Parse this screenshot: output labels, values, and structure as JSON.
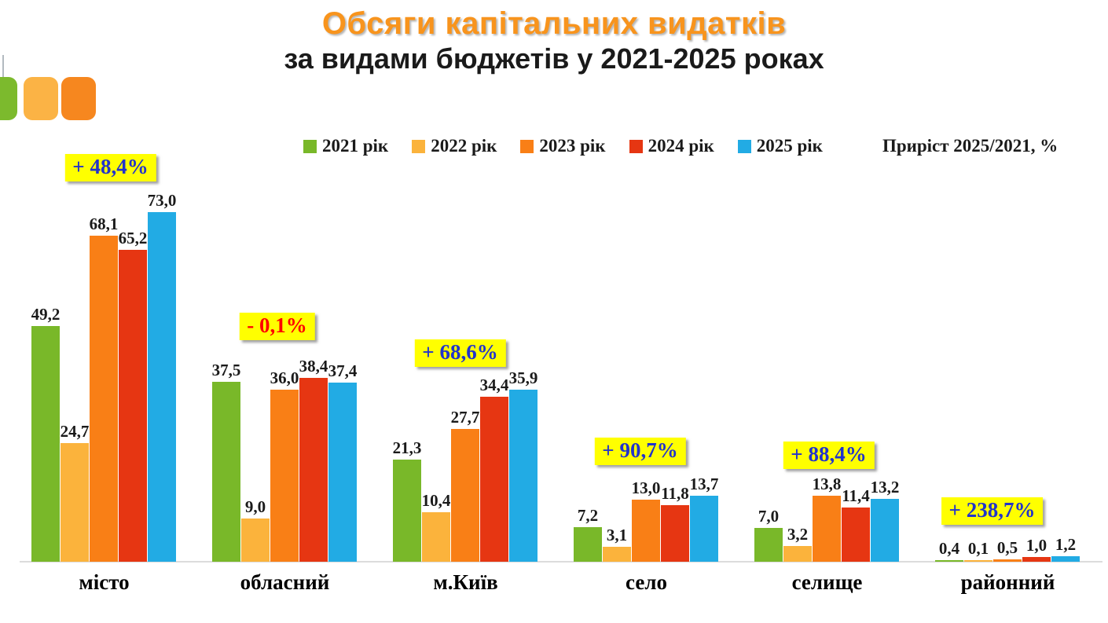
{
  "slide": {
    "title_line1": "Обсяги капітальних видатків",
    "title_line2": "за видами бюджетів у 2021-2025 роках",
    "title_color": "#F8941D"
  },
  "decor": {
    "squares": [
      {
        "name": "green-square",
        "color": "#7CBA2D"
      },
      {
        "name": "amber-square",
        "color": "#FBB345"
      },
      {
        "name": "orange-square",
        "color": "#F6871F"
      }
    ]
  },
  "legend": {
    "items": [
      {
        "label": "2021 рік",
        "color": "#79B829"
      },
      {
        "label": "2022 рік",
        "color": "#FBB33C"
      },
      {
        "label": "2023 рік",
        "color": "#F97F16"
      },
      {
        "label": "2024 рік",
        "color": "#E63612"
      },
      {
        "label": "2025 рік",
        "color": "#22ABE4"
      }
    ],
    "note": "Приріст 2025/2021, %"
  },
  "chart_data": {
    "type": "bar",
    "categories": [
      "місто",
      "обласний",
      "м.Київ",
      "село",
      "селище",
      "районний"
    ],
    "series": [
      {
        "name": "2021 рік",
        "color": "#79B829",
        "values": [
          49.2,
          37.5,
          21.3,
          7.2,
          7.0,
          0.4
        ]
      },
      {
        "name": "2022 рік",
        "color": "#FBB33C",
        "values": [
          24.7,
          9.0,
          10.4,
          3.1,
          3.2,
          0.1
        ]
      },
      {
        "name": "2023 рік",
        "color": "#F97F16",
        "values": [
          68.1,
          36.0,
          27.7,
          13.0,
          13.8,
          0.5
        ]
      },
      {
        "name": "2024 рік",
        "color": "#E63612",
        "values": [
          65.2,
          38.4,
          34.4,
          11.8,
          11.4,
          1.0
        ]
      },
      {
        "name": "2025 рік",
        "color": "#22ABE4",
        "values": [
          73.0,
          37.4,
          35.9,
          13.7,
          13.2,
          1.2
        ]
      }
    ],
    "growth_labels": [
      {
        "category": "місто",
        "label": "+ 48,4%",
        "text_color": "#2233CC",
        "bg_color": "#FFFF00"
      },
      {
        "category": "обласний",
        "label": "- 0,1%",
        "text_color": "#FF0000",
        "bg_color": "#FFFF00"
      },
      {
        "category": "м.Київ",
        "label": "+ 68,6%",
        "text_color": "#2233CC",
        "bg_color": "#FFFF00"
      },
      {
        "category": "село",
        "label": "+ 90,7%",
        "text_color": "#2233CC",
        "bg_color": "#FFFF00"
      },
      {
        "category": "селище",
        "label": "+ 88,4%",
        "text_color": "#2233CC",
        "bg_color": "#FFFF00"
      },
      {
        "category": "районний",
        "label": "+ 238,7%",
        "text_color": "#2233CC",
        "bg_color": "#FFFF00"
      }
    ],
    "decimal_separator": ",",
    "value_label_format": "one_decimal",
    "ylim": [
      0,
      76
    ],
    "grid": false,
    "legend_position": "top",
    "xlabel": "",
    "ylabel": ""
  }
}
